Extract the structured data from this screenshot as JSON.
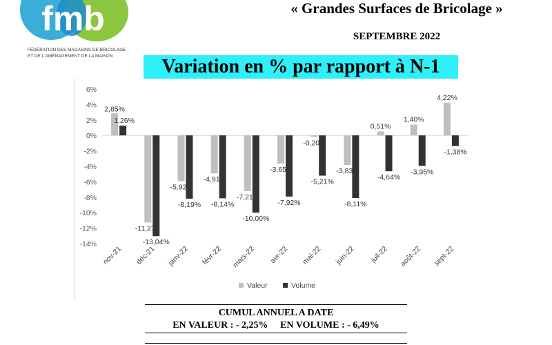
{
  "logo": {
    "text": "fmb",
    "subtitle_line1": "FÉDÉRATION DES MAGASINS DE BRICOLAGE",
    "subtitle_line2": "ET DE L'AMÉNAGEMENT DE LA MAISON",
    "colors": {
      "teal": "#3aaed8",
      "green": "#8cc63f",
      "blue": "#1c8ccf"
    }
  },
  "header": {
    "title": "« Grandes Surfaces de Bricolage »",
    "date": "SEPTEMBRE 2022"
  },
  "banner": {
    "text": "Variation en % par rapport à N-1",
    "color": "#2ef0f8"
  },
  "chart_data": {
    "type": "bar",
    "categories": [
      "nov-21",
      "déc-21",
      "janv-22",
      "févr-22",
      "mars-22",
      "avr-22",
      "mai-22",
      "juin-22",
      "juil-22",
      "août-22",
      "sept-22"
    ],
    "series": [
      {
        "name": "Valeur",
        "color": "#bfbfbf",
        "values": [
          2.85,
          -11.27,
          -5.92,
          -4.91,
          -7.21,
          -3.65,
          -0.2,
          -3.83,
          0.51,
          1.4,
          4.22
        ],
        "labels": [
          "2,85%",
          "-11,27",
          "-5,92",
          "-4,91",
          "-7,21",
          "-3,65",
          "-0,20",
          "-3,83",
          "0,51%",
          "1,40%",
          "4,22%"
        ]
      },
      {
        "name": "Volume",
        "color": "#333333",
        "values": [
          1.26,
          -13.04,
          -8.19,
          -8.14,
          -10.0,
          -7.92,
          -5.21,
          -8.11,
          -4.64,
          -3.95,
          -1.38
        ],
        "labels": [
          "1,26%",
          "-13,04%",
          "-8,19%",
          "-8,14%",
          "-10,00%",
          "-7,92%",
          "-5,21%",
          "-8,11%",
          "-4,64%",
          "-3,95%",
          "-1,38%"
        ]
      }
    ],
    "yticks": [
      6,
      4,
      2,
      0,
      -2,
      -4,
      -6,
      -8,
      -10,
      -12,
      -14
    ],
    "ytick_labels": [
      "6%",
      "4%",
      "2%",
      "0%",
      "-2%",
      "-4%",
      "-6%",
      "-8%",
      "-10%",
      "-12%",
      "-14%"
    ],
    "ylim": [
      -14,
      6
    ],
    "title": "",
    "xlabel": "",
    "ylabel": "",
    "grid": false,
    "legend_position": "bottom"
  },
  "summary": {
    "line1": "CUMUL ANNUEL A DATE",
    "line2": "EN VALEUR : - 2,25%     EN VOLUME : - 6,49%"
  }
}
